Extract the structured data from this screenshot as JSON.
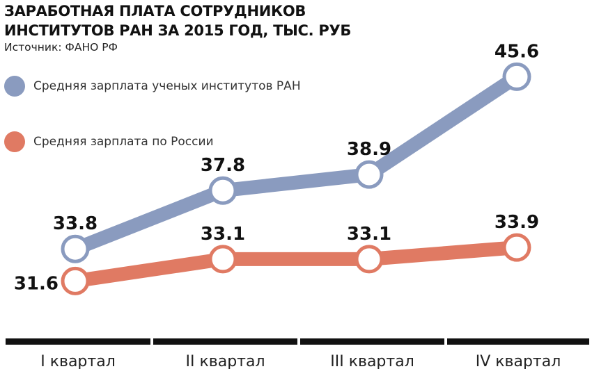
{
  "chart_data": {
    "type": "line",
    "title": "ЗАРАБОТНАЯ ПЛАТА СОТРУДНИКОВ ИНСТИТУТОВ РАН ЗА 2015 ГОД, ТЫС. РУБ",
    "title_lines": [
      "ЗАРАБОТНАЯ ПЛАТА СОТРУДНИКОВ",
      "ИНСТИТУТОВ РАН ЗА 2015 ГОД, ТЫС. РУБ"
    ],
    "source": "Источник: ФАНО РФ",
    "xlabel": "",
    "ylabel": "",
    "categories": [
      "I квартал",
      "II  квартал",
      "III  квартал",
      "IV  квартал"
    ],
    "ylim": [
      28,
      48
    ],
    "series": [
      {
        "name": "Средняя зарплата ученых институтов РАН",
        "color": "#8a9bbf",
        "values": [
          33.8,
          37.8,
          38.9,
          45.6
        ],
        "labels": [
          "33.8",
          "37.8",
          "38.9",
          "45.6"
        ]
      },
      {
        "name": "Средняя зарплата по России",
        "color": "#e07a63",
        "values": [
          31.6,
          33.1,
          33.1,
          33.9
        ],
        "labels": [
          "31.6",
          "33.1",
          "33.1",
          "33.9"
        ]
      }
    ]
  }
}
